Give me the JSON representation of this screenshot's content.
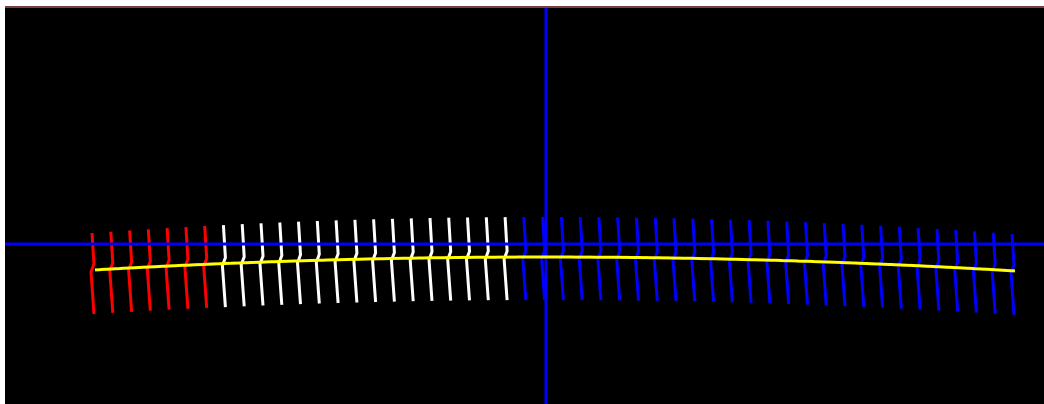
{
  "scene": {
    "background_color": "#000000",
    "frame_color": "#ffffff",
    "border_color": "#7a3f3f",
    "axis_color": "#0000ff",
    "curve_color": "#ffff00",
    "marker_colors": [
      "#ff0000",
      "#ffffff",
      "#0000ff"
    ],
    "marker_groups": [
      {
        "color": "#ff0000",
        "count": 7
      },
      {
        "color": "#ffffff",
        "count": 16
      },
      {
        "color": "#0000ff",
        "count": 27
      }
    ]
  }
}
